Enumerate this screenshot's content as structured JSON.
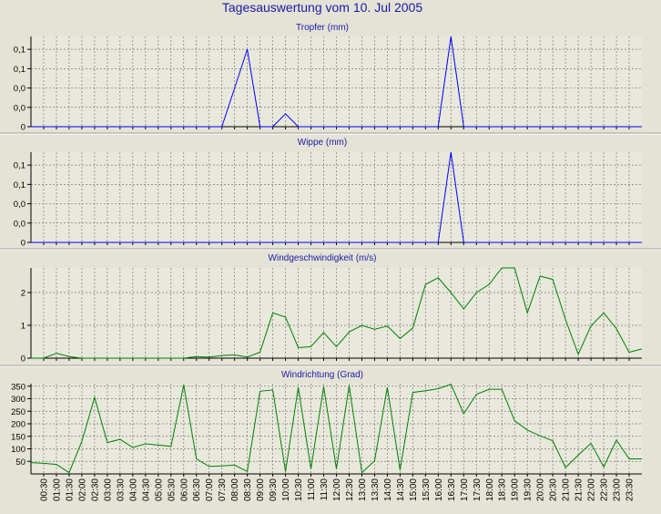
{
  "title": "Tagesauswertung vom 10. Jul 2005",
  "colors": {
    "background": "#e4e3d6",
    "plot_background": "#e9e8dc",
    "title": "#1a1aa8",
    "blue_series": "#0000ff",
    "green_series": "#008000",
    "grid": "#7a7a7a"
  },
  "x_labels": [
    "00:30",
    "01:00",
    "01:30",
    "02:00",
    "02:30",
    "03:00",
    "03:30",
    "04:00",
    "04:30",
    "05:00",
    "05:30",
    "06:00",
    "06:30",
    "07:00",
    "07:30",
    "08:00",
    "08:30",
    "09:00",
    "09:30",
    "10:00",
    "10:30",
    "11:00",
    "11:30",
    "12:00",
    "12:30",
    "13:00",
    "13:30",
    "14:00",
    "14:30",
    "15:00",
    "15:30",
    "16:00",
    "16:30",
    "17:00",
    "17:30",
    "18:00",
    "18:30",
    "19:00",
    "19:30",
    "20:00",
    "20:30",
    "21:00",
    "21:30",
    "22:00",
    "22:30",
    "23:00",
    "23:30"
  ],
  "chart_data": [
    {
      "type": "line",
      "title": "Tropfer (mm)",
      "y_tick_labels": [
        "0",
        "0,0",
        "0,0",
        "0,1",
        "0,1"
      ],
      "ylim": [
        0,
        0.14
      ],
      "y_ticks": [
        0,
        0.03,
        0.06,
        0.09,
        0.12
      ],
      "grid": true,
      "color": "#0000ff",
      "x": [
        "00:00",
        "00:30",
        "01:00",
        "01:30",
        "02:00",
        "02:30",
        "03:00",
        "03:30",
        "04:00",
        "04:30",
        "05:00",
        "05:30",
        "06:00",
        "06:30",
        "07:00",
        "07:30",
        "08:00",
        "08:30",
        "09:00",
        "09:30",
        "10:00",
        "10:30",
        "11:00",
        "11:30",
        "12:00",
        "12:30",
        "13:00",
        "13:30",
        "14:00",
        "14:30",
        "15:00",
        "15:30",
        "16:00",
        "16:30",
        "17:00",
        "17:30",
        "18:00",
        "18:30",
        "19:00",
        "19:30",
        "20:00",
        "20:30",
        "21:00",
        "21:30",
        "22:00",
        "22:30",
        "23:00",
        "23:30",
        "24:00"
      ],
      "values": [
        0,
        0,
        0,
        0,
        0,
        0,
        0,
        0,
        0,
        0,
        0,
        0,
        0,
        0,
        0,
        0,
        0.06,
        0.12,
        0,
        0,
        0.02,
        0,
        0,
        0,
        0,
        0,
        0,
        0,
        0,
        0,
        0,
        0,
        0,
        0.14,
        0,
        0,
        0,
        0,
        0,
        0,
        0,
        0,
        0,
        0,
        0,
        0,
        0,
        0,
        0
      ]
    },
    {
      "type": "line",
      "title": "Wippe (mm)",
      "y_tick_labels": [
        "0",
        "0,0",
        "0,0",
        "0,1",
        "0,1"
      ],
      "ylim": [
        0,
        0.14
      ],
      "y_ticks": [
        0,
        0.03,
        0.06,
        0.09,
        0.12
      ],
      "grid": true,
      "color": "#0000ff",
      "x": [
        "00:00",
        "00:30",
        "01:00",
        "01:30",
        "02:00",
        "02:30",
        "03:00",
        "03:30",
        "04:00",
        "04:30",
        "05:00",
        "05:30",
        "06:00",
        "06:30",
        "07:00",
        "07:30",
        "08:00",
        "08:30",
        "09:00",
        "09:30",
        "10:00",
        "10:30",
        "11:00",
        "11:30",
        "12:00",
        "12:30",
        "13:00",
        "13:30",
        "14:00",
        "14:30",
        "15:00",
        "15:30",
        "16:00",
        "16:30",
        "17:00",
        "17:30",
        "18:00",
        "18:30",
        "19:00",
        "19:30",
        "20:00",
        "20:30",
        "21:00",
        "21:30",
        "22:00",
        "22:30",
        "23:00",
        "23:30",
        "24:00"
      ],
      "values": [
        0,
        0,
        0,
        0,
        0,
        0,
        0,
        0,
        0,
        0,
        0,
        0,
        0,
        0,
        0,
        0,
        0,
        0,
        0,
        0,
        0,
        0,
        0,
        0,
        0,
        0,
        0,
        0,
        0,
        0,
        0,
        0,
        0,
        0.14,
        0,
        0,
        0,
        0,
        0,
        0,
        0,
        0,
        0,
        0,
        0,
        0,
        0,
        0,
        0
      ]
    },
    {
      "type": "line",
      "title": "Windgeschwindigkeit (m/s)",
      "y_tick_labels": [
        "0",
        "1",
        "2"
      ],
      "ylim": [
        0,
        2.75
      ],
      "y_ticks": [
        0,
        1,
        2
      ],
      "grid": true,
      "color": "#008000",
      "x": [
        "00:00",
        "00:30",
        "01:00",
        "01:30",
        "02:00",
        "02:30",
        "03:00",
        "03:30",
        "04:00",
        "04:30",
        "05:00",
        "05:30",
        "06:00",
        "06:30",
        "07:00",
        "07:30",
        "08:00",
        "08:30",
        "09:00",
        "09:30",
        "10:00",
        "10:30",
        "11:00",
        "11:30",
        "12:00",
        "12:30",
        "13:00",
        "13:30",
        "14:00",
        "14:30",
        "15:00",
        "15:30",
        "16:00",
        "16:30",
        "17:00",
        "17:30",
        "18:00",
        "18:30",
        "19:00",
        "19:30",
        "20:00",
        "20:30",
        "21:00",
        "21:30",
        "22:00",
        "22:30",
        "23:00",
        "23:30",
        "24:00"
      ],
      "values": [
        0,
        0,
        0.15,
        0.05,
        0,
        0,
        0,
        0,
        0,
        0,
        0,
        0,
        0,
        0.05,
        0.03,
        0.08,
        0.1,
        0.03,
        0.18,
        1.38,
        1.25,
        0.32,
        0.35,
        0.78,
        0.35,
        0.8,
        1.0,
        0.88,
        0.98,
        0.6,
        0.92,
        2.25,
        2.45,
        2.0,
        1.5,
        2.0,
        2.25,
        2.75,
        2.75,
        1.38,
        2.5,
        2.4,
        1.18,
        0.12,
        0.98,
        1.38,
        0.9,
        0.18,
        0.28
      ]
    },
    {
      "type": "line",
      "title": "Windrichtung (Grad)",
      "y_tick_labels": [
        "50",
        "100",
        "150",
        "200",
        "250",
        "300",
        "350"
      ],
      "ylim": [
        0,
        360
      ],
      "y_ticks": [
        50,
        100,
        150,
        200,
        250,
        300,
        350
      ],
      "grid": true,
      "color": "#008000",
      "x": [
        "00:00",
        "00:30",
        "01:00",
        "01:30",
        "02:00",
        "02:30",
        "03:00",
        "03:30",
        "04:00",
        "04:30",
        "05:00",
        "05:30",
        "06:00",
        "06:30",
        "07:00",
        "07:30",
        "08:00",
        "08:30",
        "09:00",
        "09:30",
        "10:00",
        "10:30",
        "11:00",
        "11:30",
        "12:00",
        "12:30",
        "13:00",
        "13:30",
        "14:00",
        "14:30",
        "15:00",
        "15:30",
        "16:00",
        "16:30",
        "17:00",
        "17:30",
        "18:00",
        "18:30",
        "19:00",
        "19:30",
        "20:00",
        "20:30",
        "21:00",
        "21:30",
        "22:00",
        "22:30",
        "23:00",
        "23:30",
        "24:00"
      ],
      "values": [
        45,
        42,
        38,
        5,
        130,
        305,
        125,
        138,
        105,
        120,
        115,
        110,
        355,
        60,
        30,
        32,
        35,
        10,
        330,
        335,
        10,
        345,
        20,
        348,
        20,
        352,
        5,
        52,
        345,
        15,
        325,
        332,
        340,
        358,
        240,
        318,
        338,
        338,
        212,
        175,
        152,
        132,
        25,
        75,
        122,
        28,
        135,
        60,
        60
      ]
    }
  ]
}
